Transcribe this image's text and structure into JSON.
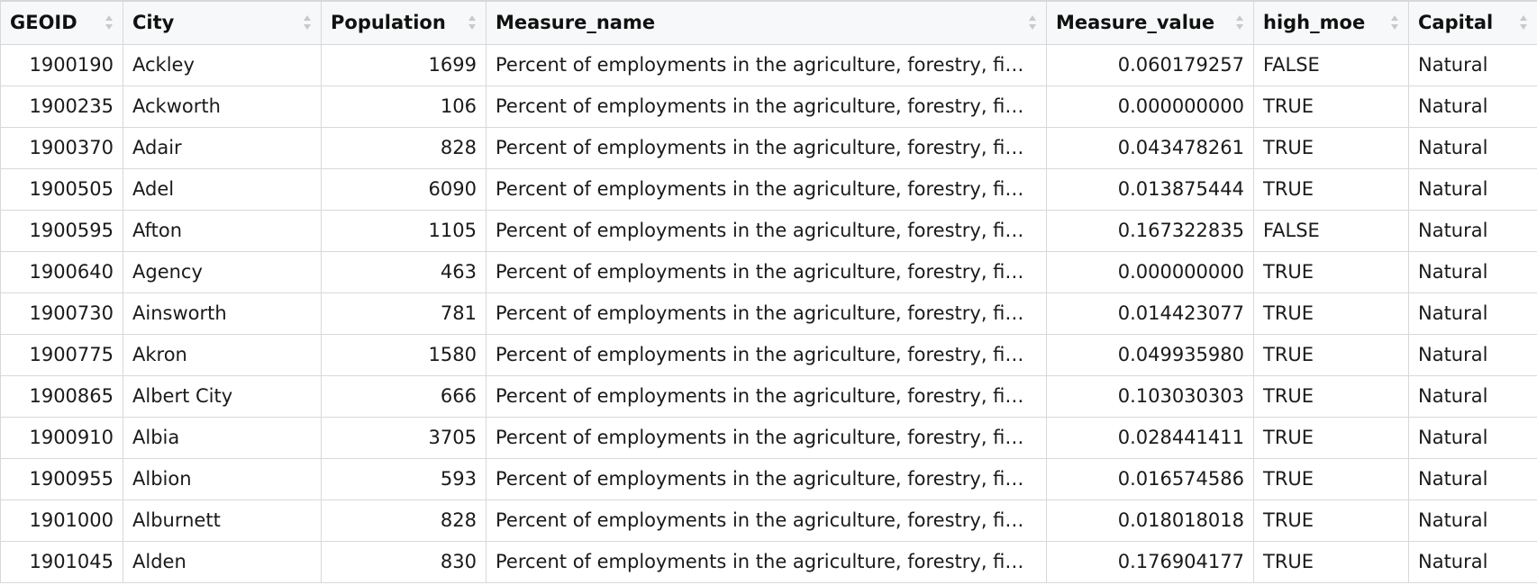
{
  "table": {
    "columns": [
      {
        "key": "geoid",
        "label": "GEOID",
        "align": "right"
      },
      {
        "key": "city",
        "label": "City",
        "align": "left"
      },
      {
        "key": "population",
        "label": "Population",
        "align": "right"
      },
      {
        "key": "measure_name",
        "label": "Measure_name",
        "align": "left"
      },
      {
        "key": "measure_value",
        "label": "Measure_value",
        "align": "right"
      },
      {
        "key": "high_moe",
        "label": "high_moe",
        "align": "left"
      },
      {
        "key": "capital",
        "label": "Capital",
        "align": "left"
      }
    ],
    "rows": [
      {
        "geoid": "1900190",
        "city": "Ackley",
        "population": "1699",
        "measure_name": "Percent of employments in the agriculture, forestry, fi…",
        "measure_value": "0.060179257",
        "high_moe": "FALSE",
        "capital": "Natural"
      },
      {
        "geoid": "1900235",
        "city": "Ackworth",
        "population": "106",
        "measure_name": "Percent of employments in the agriculture, forestry, fi…",
        "measure_value": "0.000000000",
        "high_moe": "TRUE",
        "capital": "Natural"
      },
      {
        "geoid": "1900370",
        "city": "Adair",
        "population": "828",
        "measure_name": "Percent of employments in the agriculture, forestry, fi…",
        "measure_value": "0.043478261",
        "high_moe": "TRUE",
        "capital": "Natural"
      },
      {
        "geoid": "1900505",
        "city": "Adel",
        "population": "6090",
        "measure_name": "Percent of employments in the agriculture, forestry, fi…",
        "measure_value": "0.013875444",
        "high_moe": "TRUE",
        "capital": "Natural"
      },
      {
        "geoid": "1900595",
        "city": "Afton",
        "population": "1105",
        "measure_name": "Percent of employments in the agriculture, forestry, fi…",
        "measure_value": "0.167322835",
        "high_moe": "FALSE",
        "capital": "Natural"
      },
      {
        "geoid": "1900640",
        "city": "Agency",
        "population": "463",
        "measure_name": "Percent of employments in the agriculture, forestry, fi…",
        "measure_value": "0.000000000",
        "high_moe": "TRUE",
        "capital": "Natural"
      },
      {
        "geoid": "1900730",
        "city": "Ainsworth",
        "population": "781",
        "measure_name": "Percent of employments in the agriculture, forestry, fi…",
        "measure_value": "0.014423077",
        "high_moe": "TRUE",
        "capital": "Natural"
      },
      {
        "geoid": "1900775",
        "city": "Akron",
        "population": "1580",
        "measure_name": "Percent of employments in the agriculture, forestry, fi…",
        "measure_value": "0.049935980",
        "high_moe": "TRUE",
        "capital": "Natural"
      },
      {
        "geoid": "1900865",
        "city": "Albert City",
        "population": "666",
        "measure_name": "Percent of employments in the agriculture, forestry, fi…",
        "measure_value": "0.103030303",
        "high_moe": "TRUE",
        "capital": "Natural"
      },
      {
        "geoid": "1900910",
        "city": "Albia",
        "population": "3705",
        "measure_name": "Percent of employments in the agriculture, forestry, fi…",
        "measure_value": "0.028441411",
        "high_moe": "TRUE",
        "capital": "Natural"
      },
      {
        "geoid": "1900955",
        "city": "Albion",
        "population": "593",
        "measure_name": "Percent of employments in the agriculture, forestry, fi…",
        "measure_value": "0.016574586",
        "high_moe": "TRUE",
        "capital": "Natural"
      },
      {
        "geoid": "1901000",
        "city": "Alburnett",
        "population": "828",
        "measure_name": "Percent of employments in the agriculture, forestry, fi…",
        "measure_value": "0.018018018",
        "high_moe": "TRUE",
        "capital": "Natural"
      },
      {
        "geoid": "1901045",
        "city": "Alden",
        "population": "830",
        "measure_name": "Percent of employments in the agriculture, forestry, fi…",
        "measure_value": "0.176904177",
        "high_moe": "TRUE",
        "capital": "Natural"
      }
    ]
  },
  "colors": {
    "border": "#d8d8d8",
    "header_bg": "#f7f8f9",
    "sort_icon": "#c9c9c9"
  },
  "icons": {
    "sort": "sort-icon"
  }
}
